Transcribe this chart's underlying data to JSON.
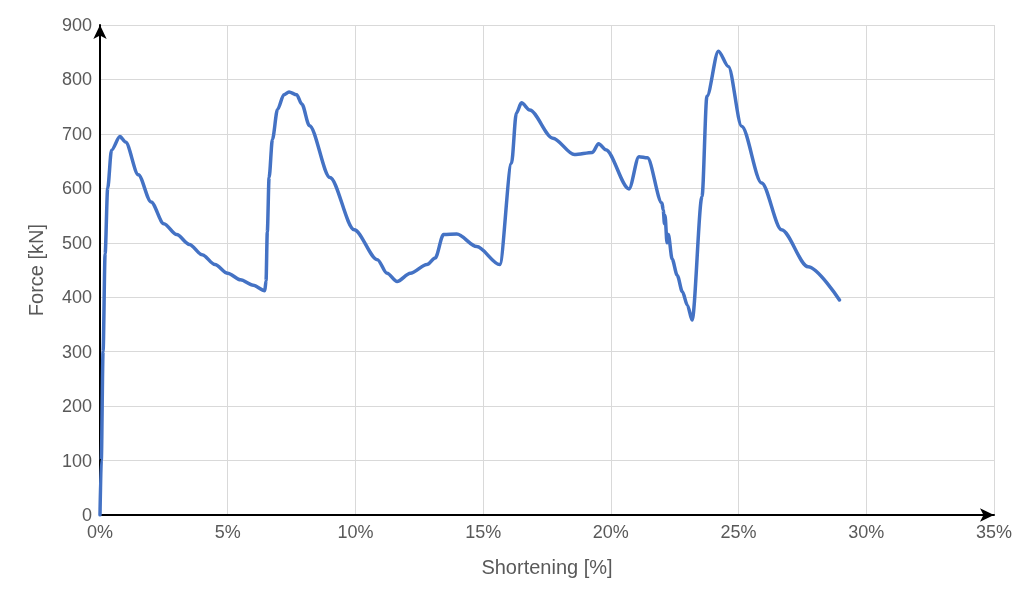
{
  "chart_data": {
    "type": "line",
    "xlabel": "Shortening [%]",
    "ylabel": "Force [kN]",
    "xlim": [
      0,
      35
    ],
    "xticks": [
      {
        "value": 0,
        "label": "0%"
      },
      {
        "value": 5,
        "label": "5%"
      },
      {
        "value": 10,
        "label": "10%"
      },
      {
        "value": 15,
        "label": "15%"
      },
      {
        "value": 20,
        "label": "20%"
      },
      {
        "value": 25,
        "label": "25%"
      },
      {
        "value": 30,
        "label": "30%"
      },
      {
        "value": 35,
        "label": "35%"
      }
    ],
    "ylim": [
      0,
      900
    ],
    "yticks": [
      0,
      100,
      200,
      300,
      400,
      500,
      600,
      700,
      800,
      900
    ],
    "grid": true,
    "marker": "none",
    "line_style": "solid",
    "series": [
      {
        "color": "#4472c4",
        "x": [
          0,
          0.05,
          0.12,
          0.2,
          0.3,
          0.45,
          0.78,
          1.0,
          1.5,
          2.0,
          2.5,
          3.0,
          3.5,
          4.0,
          4.5,
          5.0,
          5.5,
          6.0,
          6.45,
          6.5,
          6.55,
          6.62,
          6.75,
          6.95,
          7.2,
          7.4,
          7.7,
          7.9,
          8.2,
          9.0,
          9.95,
          10.86,
          11.24,
          11.63,
          12.15,
          12.8,
          13.12,
          13.45,
          13.97,
          14.75,
          15.65,
          16.11,
          16.3,
          16.5,
          16.82,
          17.73,
          18.57,
          19.28,
          19.52,
          19.8,
          20.71,
          21.1,
          21.43,
          22.0,
          22.05,
          22.1,
          22.12,
          22.2,
          22.25,
          22.4,
          22.6,
          22.8,
          23.0,
          23.18,
          23.57,
          23.76,
          24.21,
          24.6,
          25.12,
          25.9,
          26.68,
          27.72,
          28.95
        ],
        "values": [
          0,
          100,
          300,
          480,
          600,
          670,
          695,
          685,
          625,
          575,
          535,
          515,
          497,
          478,
          460,
          444,
          432,
          422,
          412,
          430,
          520,
          620,
          690,
          745,
          772,
          777,
          772,
          755,
          715,
          620,
          524,
          469,
          444,
          429,
          444,
          460,
          472,
          515,
          516,
          493,
          460,
          646,
          738,
          757,
          744,
          692,
          662,
          666,
          682,
          671,
          599,
          658,
          656,
          573,
          560,
          535,
          550,
          500,
          515,
          470,
          440,
          410,
          385,
          358,
          585,
          769,
          852,
          824,
          714,
          610,
          524,
          456,
          395
        ]
      }
    ]
  }
}
